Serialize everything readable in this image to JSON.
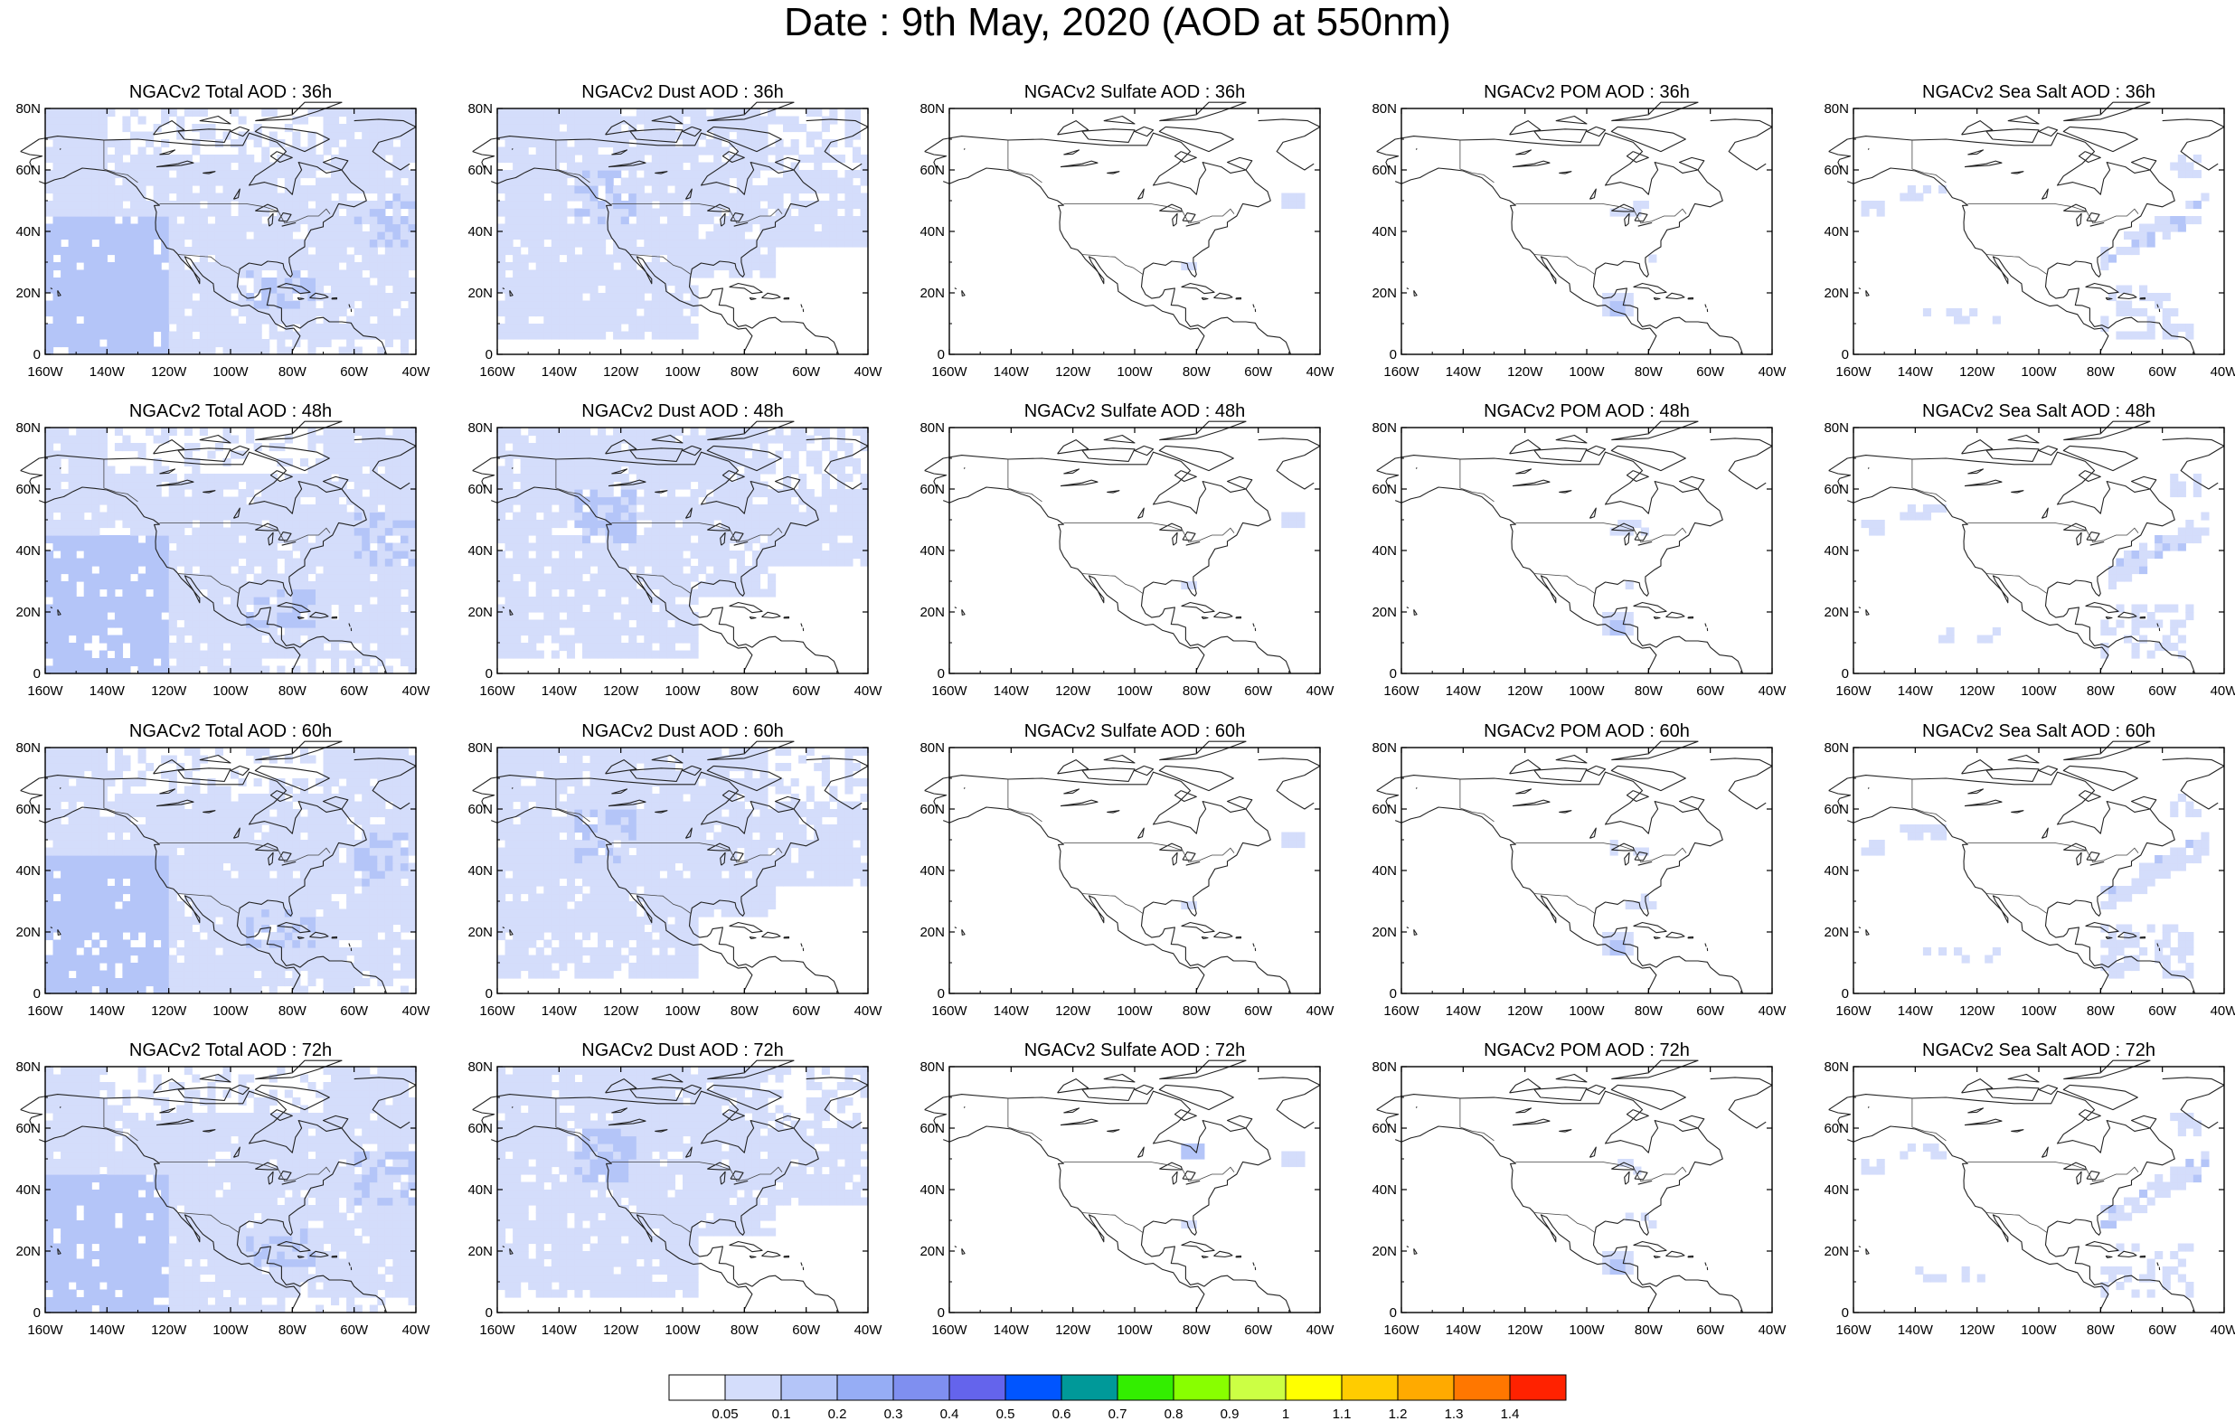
{
  "figure": {
    "title": "Date : 9th May, 2020 (AOD at 550nm)"
  },
  "map_axes": {
    "lon_ticks": [
      "160W",
      "140W",
      "120W",
      "100W",
      "80W",
      "60W",
      "40W"
    ],
    "lat_ticks": [
      "80N",
      "60N",
      "40N",
      "20N",
      "0"
    ]
  },
  "chart_data": {
    "type": "heatmap",
    "title": "Date : 9th May, 2020 (AOD at 550nm)",
    "xlim": [
      -160,
      -40
    ],
    "ylim": [
      0,
      80
    ],
    "species": [
      "Total",
      "Dust",
      "Sulfate",
      "POM",
      "Sea Salt"
    ],
    "forecast_hours": [
      "36h",
      "48h",
      "60h",
      "72h"
    ],
    "panels": [
      {
        "title": "NGACv2 Total AOD : 36h",
        "species": "Total",
        "hour": "36h",
        "coverage": "broad"
      },
      {
        "title": "NGACv2 Dust AOD : 36h",
        "species": "Dust",
        "hour": "36h",
        "coverage": "broad"
      },
      {
        "title": "NGACv2 Sulfate AOD : 36h",
        "species": "Sulfate",
        "hour": "36h",
        "coverage": "minimal"
      },
      {
        "title": "NGACv2 POM AOD : 36h",
        "species": "POM",
        "hour": "36h",
        "coverage": "local"
      },
      {
        "title": "NGACv2 Sea Salt AOD : 36h",
        "species": "Sea Salt",
        "hour": "36h",
        "coverage": "bands"
      },
      {
        "title": "NGACv2 Total AOD : 48h",
        "species": "Total",
        "hour": "48h",
        "coverage": "broad"
      },
      {
        "title": "NGACv2 Dust AOD : 48h",
        "species": "Dust",
        "hour": "48h",
        "coverage": "broad"
      },
      {
        "title": "NGACv2 Sulfate AOD : 48h",
        "species": "Sulfate",
        "hour": "48h",
        "coverage": "minimal"
      },
      {
        "title": "NGACv2 POM AOD : 48h",
        "species": "POM",
        "hour": "48h",
        "coverage": "local"
      },
      {
        "title": "NGACv2 Sea Salt AOD : 48h",
        "species": "Sea Salt",
        "hour": "48h",
        "coverage": "bands"
      },
      {
        "title": "NGACv2 Total AOD : 60h",
        "species": "Total",
        "hour": "60h",
        "coverage": "broad"
      },
      {
        "title": "NGACv2 Dust AOD : 60h",
        "species": "Dust",
        "hour": "60h",
        "coverage": "broad"
      },
      {
        "title": "NGACv2 Sulfate AOD : 60h",
        "species": "Sulfate",
        "hour": "60h",
        "coverage": "minimal"
      },
      {
        "title": "NGACv2 POM AOD : 60h",
        "species": "POM",
        "hour": "60h",
        "coverage": "local"
      },
      {
        "title": "NGACv2 Sea Salt AOD : 60h",
        "species": "Sea Salt",
        "hour": "60h",
        "coverage": "bands"
      },
      {
        "title": "NGACv2 Total AOD : 72h",
        "species": "Total",
        "hour": "72h",
        "coverage": "broad"
      },
      {
        "title": "NGACv2 Dust AOD : 72h",
        "species": "Dust",
        "hour": "72h",
        "coverage": "broad"
      },
      {
        "title": "NGACv2 Sulfate AOD : 72h",
        "species": "Sulfate",
        "hour": "72h",
        "coverage": "minimal"
      },
      {
        "title": "NGACv2 POM AOD : 72h",
        "species": "POM",
        "hour": "72h",
        "coverage": "local"
      },
      {
        "title": "NGACv2 Sea Salt  AOD : 72h",
        "species": "Sea Salt",
        "hour": "72h",
        "coverage": "bands"
      }
    ],
    "colorbar": {
      "labels": [
        "0.05",
        "0.1",
        "0.2",
        "0.3",
        "0.4",
        "0.5",
        "0.6",
        "0.7",
        "0.8",
        "0.9",
        "1",
        "1.1",
        "1.2",
        "1.3",
        "1.4"
      ],
      "colors": [
        "#ffffff",
        "#d4ddfb",
        "#b4c5f8",
        "#96adf5",
        "#7f8ff0",
        "#6464ec",
        "#0055ff",
        "#009999",
        "#33ee00",
        "#88ff00",
        "#ccff44",
        "#ffff00",
        "#ffcc00",
        "#ffaa00",
        "#ff7700",
        "#ff2200"
      ]
    }
  }
}
